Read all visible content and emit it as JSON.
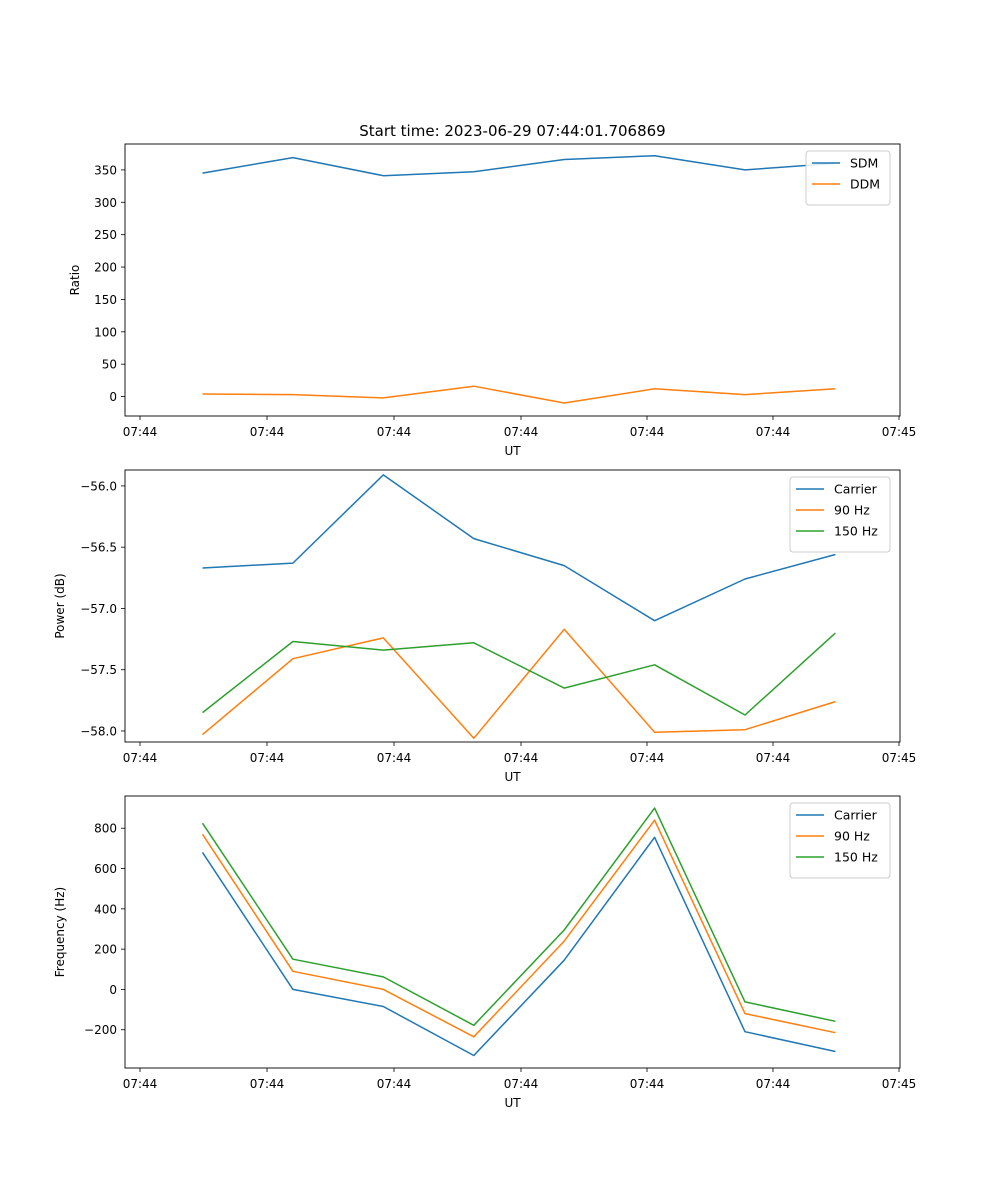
{
  "figure_title": "Start time: 2023-06-29 07:44:01.706869",
  "chart_data": [
    {
      "type": "line",
      "title": "Start time: 2023-06-29 07:44:01.706869",
      "xlabel": "UT",
      "ylabel": "Ratio",
      "xticks": [
        "07:44",
        "07:44",
        "07:44",
        "07:44",
        "07:44",
        "07:44",
        "07:45"
      ],
      "xlim": [
        0,
        30
      ],
      "ylim": [
        -30,
        390
      ],
      "yticks": [
        0,
        50,
        100,
        150,
        200,
        250,
        300,
        350
      ],
      "x": [
        3,
        6.5,
        10,
        13.5,
        17,
        20.5,
        24,
        27.5
      ],
      "series": [
        {
          "name": "SDM",
          "color": "#1f77b4",
          "values": [
            345,
            369,
            341,
            347,
            366,
            372,
            350,
            360
          ]
        },
        {
          "name": "DDM",
          "color": "#ff7f0e",
          "values": [
            4,
            3,
            -2,
            16,
            -10,
            12,
            3,
            12
          ]
        }
      ],
      "legend": "top-right",
      "grid": false
    },
    {
      "type": "line",
      "title": "",
      "xlabel": "UT",
      "ylabel": "Power (dB)",
      "xticks": [
        "07:44",
        "07:44",
        "07:44",
        "07:44",
        "07:44",
        "07:44",
        "07:45"
      ],
      "xlim": [
        0,
        30
      ],
      "ylim": [
        -58.09,
        -55.87
      ],
      "yticks": [
        -56.0,
        -56.5,
        -57.0,
        -57.5,
        -58.0
      ],
      "x": [
        3,
        6.5,
        10,
        13.5,
        17,
        20.5,
        24,
        27.5
      ],
      "series": [
        {
          "name": "Carrier",
          "color": "#1f77b4",
          "values": [
            -56.67,
            -56.63,
            -55.91,
            -56.43,
            -56.65,
            -57.1,
            -56.76,
            -56.56
          ]
        },
        {
          "name": "90 Hz",
          "color": "#ff7f0e",
          "values": [
            -58.03,
            -57.41,
            -57.24,
            -58.06,
            -57.17,
            -58.01,
            -57.99,
            -57.76
          ]
        },
        {
          "name": "150 Hz",
          "color": "#2ca02c",
          "values": [
            -57.85,
            -57.27,
            -57.34,
            -57.28,
            -57.65,
            -57.46,
            -57.87,
            -57.2
          ]
        }
      ],
      "legend": "top-right",
      "grid": false
    },
    {
      "type": "line",
      "title": "",
      "xlabel": "UT",
      "ylabel": "Frequency (Hz)",
      "xticks": [
        "07:44",
        "07:44",
        "07:44",
        "07:44",
        "07:44",
        "07:44",
        "07:45"
      ],
      "xlim": [
        0,
        30
      ],
      "ylim": [
        -390,
        960
      ],
      "yticks": [
        800,
        600,
        400,
        200,
        0,
        -200
      ],
      "x": [
        3,
        6.5,
        10,
        13.5,
        17,
        20.5,
        24,
        27.5
      ],
      "series": [
        {
          "name": "Carrier",
          "color": "#1f77b4",
          "values": [
            680,
            0,
            -85,
            -328,
            145,
            755,
            -210,
            -308
          ]
        },
        {
          "name": "90 Hz",
          "color": "#ff7f0e",
          "values": [
            770,
            90,
            0,
            -235,
            240,
            840,
            -120,
            -215
          ]
        },
        {
          "name": "150 Hz",
          "color": "#2ca02c",
          "values": [
            825,
            150,
            62,
            -178,
            295,
            900,
            -62,
            -158
          ]
        }
      ],
      "legend": "top-right",
      "grid": false
    }
  ]
}
